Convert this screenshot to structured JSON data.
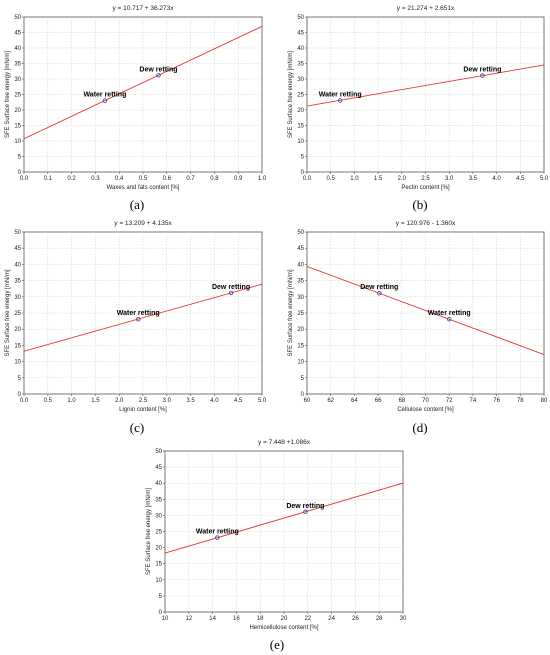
{
  "figure": {
    "panels": [
      {
        "caption": "(a)"
      },
      {
        "caption": "(b)"
      },
      {
        "caption": "(c)"
      },
      {
        "caption": "(d)"
      },
      {
        "caption": "(e)"
      }
    ]
  },
  "colors": {
    "line": "#e8322e",
    "point": "#2f3fb6",
    "grid": "#c8c8c8",
    "axis": "#555555",
    "background": "#ffffff"
  },
  "chart_data": [
    {
      "type": "scatter",
      "title": "y = 10.717 + 36.273x",
      "xlabel": "Waxes and fats content [%]",
      "ylabel": "SFE Surface free energy [mN/m]",
      "xlim": [
        0,
        1.0
      ],
      "ylim": [
        0,
        50
      ],
      "xticks": [
        "0.0",
        "0.1",
        "0.2",
        "0.3",
        "0.4",
        "0.5",
        "0.6",
        "0.7",
        "0.8",
        "0.9",
        "1.0"
      ],
      "yticks": [
        "0",
        "5",
        "10",
        "15",
        "20",
        "25",
        "30",
        "35",
        "40",
        "45",
        "50"
      ],
      "fit": {
        "intercept": 10.717,
        "slope": 36.273
      },
      "points": [
        {
          "label": "Water retting",
          "x": 0.34,
          "y": 23.0
        },
        {
          "label": "Dew retting",
          "x": 0.565,
          "y": 31.2
        }
      ],
      "grid": true
    },
    {
      "type": "scatter",
      "title": "y = 21.274 + 2.651x",
      "xlabel": "Pectin content [%]",
      "ylabel": "SFE Surface free energy [mN/m]",
      "xlim": [
        0,
        5.0
      ],
      "ylim": [
        0,
        50
      ],
      "xticks": [
        "0.0",
        "0.5",
        "1.0",
        "1.5",
        "2.0",
        "2.5",
        "3.0",
        "3.5",
        "4.0",
        "4.5",
        "5.0"
      ],
      "yticks": [
        "0",
        "5",
        "10",
        "15",
        "20",
        "25",
        "30",
        "35",
        "40",
        "45",
        "50"
      ],
      "fit": {
        "intercept": 21.274,
        "slope": 2.651
      },
      "points": [
        {
          "label": "Water retting",
          "x": 0.7,
          "y": 23.1
        },
        {
          "label": "Dew retting",
          "x": 3.7,
          "y": 31.1
        }
      ],
      "grid": true
    },
    {
      "type": "scatter",
      "title": "y = 13.209 + 4.135x",
      "xlabel": "Lignin content [%]",
      "ylabel": "SFE Surface free energy [mN/m]",
      "xlim": [
        0,
        5.0
      ],
      "ylim": [
        0,
        50
      ],
      "xticks": [
        "0.0",
        "0.5",
        "1.0",
        "1.5",
        "2.0",
        "2.5",
        "3.0",
        "3.5",
        "4.0",
        "4.5",
        "5.0"
      ],
      "yticks": [
        "0",
        "5",
        "10",
        "15",
        "20",
        "25",
        "30",
        "35",
        "40",
        "45",
        "50"
      ],
      "fit": {
        "intercept": 13.209,
        "slope": 4.135
      },
      "points": [
        {
          "label": "Water retting",
          "x": 2.4,
          "y": 23.1
        },
        {
          "label": "Dew retting",
          "x": 4.35,
          "y": 31.2
        }
      ],
      "grid": true
    },
    {
      "type": "scatter",
      "title": "y = 120.976 - 1.360x",
      "xlabel": "Cellulose content [%]",
      "ylabel": "SFE Surface free energy [mN/m]",
      "xlim": [
        60,
        80
      ],
      "ylim": [
        0,
        50
      ],
      "xticks": [
        "60",
        "62",
        "64",
        "66",
        "68",
        "70",
        "72",
        "74",
        "76",
        "78",
        "80"
      ],
      "yticks": [
        "0",
        "5",
        "10",
        "15",
        "20",
        "25",
        "30",
        "35",
        "40",
        "45",
        "50"
      ],
      "fit": {
        "intercept": 120.976,
        "slope": -1.36
      },
      "points": [
        {
          "label": "Dew retting",
          "x": 66.1,
          "y": 31.1
        },
        {
          "label": "Water retting",
          "x": 72.0,
          "y": 23.1
        }
      ],
      "grid": true
    },
    {
      "type": "scatter",
      "title": "y = 7.448 +1.086x",
      "xlabel": "Hemicellulose content [%]",
      "ylabel": "SFE Surface free energy [mN/m]",
      "xlim": [
        10,
        30
      ],
      "ylim": [
        0,
        50
      ],
      "xticks": [
        "10",
        "12",
        "14",
        "16",
        "18",
        "20",
        "22",
        "24",
        "26",
        "28",
        "30"
      ],
      "yticks": [
        "0",
        "5",
        "10",
        "15",
        "20",
        "25",
        "30",
        "35",
        "40",
        "45",
        "50"
      ],
      "fit": {
        "intercept": 7.448,
        "slope": 1.086
      },
      "points": [
        {
          "label": "Water retting",
          "x": 14.4,
          "y": 23.1
        },
        {
          "label": "Dew retting",
          "x": 21.8,
          "y": 31.1
        }
      ],
      "grid": true
    }
  ]
}
